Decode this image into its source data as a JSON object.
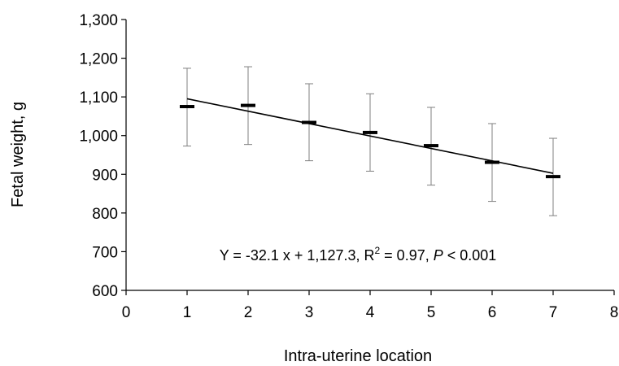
{
  "chart_data": {
    "type": "scatter",
    "title": "",
    "xlabel": "Intra-uterine location",
    "ylabel": "Fetal weight, g",
    "xlim": [
      0,
      8
    ],
    "ylim": [
      600,
      1300
    ],
    "x_ticks": [
      "0",
      "1",
      "2",
      "3",
      "4",
      "5",
      "6",
      "7",
      "8"
    ],
    "y_ticks": [
      "600",
      "700",
      "800",
      "900",
      "1,000",
      "1,100",
      "1,200",
      "1,300"
    ],
    "grid": false,
    "legend": "none",
    "series": [
      {
        "x": [
          1,
          2,
          3,
          4,
          5,
          6,
          7
        ],
        "y": [
          1075,
          1078,
          1034,
          1008,
          974,
          931,
          894
        ],
        "error_low": [
          973,
          977,
          935,
          908,
          872,
          830,
          793
        ],
        "error_high": [
          1174,
          1178,
          1134,
          1108,
          1073,
          1031,
          993
        ]
      }
    ],
    "trendline": {
      "slope": -32.1,
      "intercept": 1127.3,
      "x_range": [
        1,
        7
      ]
    },
    "annotation": {
      "prefix": "Y = -32.1 x + 1,127.3, R",
      "superscript": "2",
      "middle": " = 0.97, ",
      "italic": "P",
      "suffix": " < 0.001"
    },
    "colors": {
      "markers": "#000000",
      "error_bars": "#808080",
      "trendline": "#000000",
      "axes": "#000000"
    }
  }
}
